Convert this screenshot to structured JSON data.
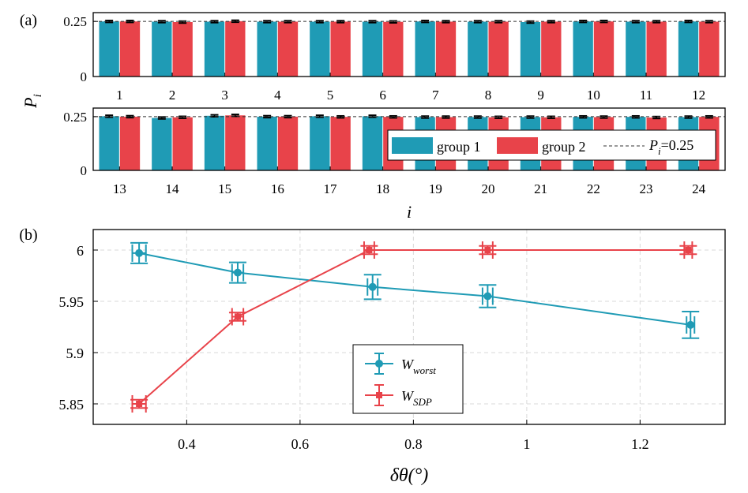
{
  "colors": {
    "group1": "#1f9bb5",
    "group2": "#e8434a",
    "frame": "#000000",
    "grid": "#d9d9d9"
  },
  "chart_data": [
    {
      "type": "bar",
      "panel_label": "(a)",
      "ylabel": "P",
      "ylabel_sub": "i",
      "xlabel": "i",
      "ylim": [
        0,
        0.29
      ],
      "yticks": [
        "0",
        "0.25"
      ],
      "reference_line": {
        "value": 0.25,
        "style": "dashed"
      },
      "legend": {
        "placement": "inside-lower-right of bottom subplot",
        "entries": [
          "group 1",
          "group 2"
        ],
        "ref_prefix": "P",
        "ref_sub": "i",
        "ref_value": "=0.25"
      },
      "subplots": [
        {
          "categories": [
            "1",
            "2",
            "3",
            "4",
            "5",
            "6",
            "7",
            "8",
            "9",
            "10",
            "11",
            "12"
          ],
          "series": [
            {
              "name": "group 1",
              "values": [
                0.25,
                0.249,
                0.249,
                0.249,
                0.249,
                0.249,
                0.25,
                0.249,
                0.247,
                0.25,
                0.249,
                0.25
              ]
            },
            {
              "name": "group 2",
              "values": [
                0.25,
                0.247,
                0.251,
                0.249,
                0.249,
                0.248,
                0.249,
                0.249,
                0.249,
                0.25,
                0.249,
                0.249
              ]
            }
          ]
        },
        {
          "categories": [
            "13",
            "14",
            "15",
            "16",
            "17",
            "18",
            "19",
            "20",
            "21",
            "22",
            "23",
            "24"
          ],
          "series": [
            {
              "name": "group 1",
              "values": [
                0.252,
                0.244,
                0.254,
                0.25,
                0.252,
                0.252,
                0.248,
                0.248,
                0.248,
                0.249,
                0.249,
                0.248
              ]
            },
            {
              "name": "group 2",
              "values": [
                0.25,
                0.247,
                0.256,
                0.25,
                0.249,
                0.249,
                0.248,
                0.247,
                0.247,
                0.248,
                0.246,
                0.249
              ]
            }
          ]
        }
      ]
    },
    {
      "type": "line",
      "panel_label": "(b)",
      "xlabel": "δθ(°)",
      "xlim": [
        0.235,
        1.35
      ],
      "ylim": [
        5.83,
        6.02
      ],
      "xticks": [
        "0.4",
        "0.6",
        "0.8",
        "1",
        "1.2"
      ],
      "yticks": [
        "5.85",
        "5.9",
        "5.95",
        "6"
      ],
      "grid": true,
      "legend_placement": "center",
      "series": [
        {
          "name": "W",
          "name_sub": "worst",
          "x": [
            0.316,
            0.49,
            0.728,
            0.931,
            1.289
          ],
          "y": [
            5.997,
            5.978,
            5.964,
            5.955,
            5.927
          ],
          "yerr": [
            0.01,
            0.01,
            0.012,
            0.011,
            0.013
          ],
          "xerr": [
            0.012,
            0.01,
            0.009,
            0.009,
            0.007
          ]
        },
        {
          "name": "W",
          "name_sub": "SDP",
          "x": [
            0.316,
            0.49,
            0.722,
            0.931,
            1.285
          ],
          "y": [
            5.85,
            5.935,
            6.0,
            6.0,
            6.0
          ],
          "yerr": [
            0.004,
            0.004,
            0.004,
            0.004,
            0.004
          ],
          "xerr": [
            0.012,
            0.01,
            0.009,
            0.009,
            0.007
          ]
        }
      ]
    }
  ]
}
